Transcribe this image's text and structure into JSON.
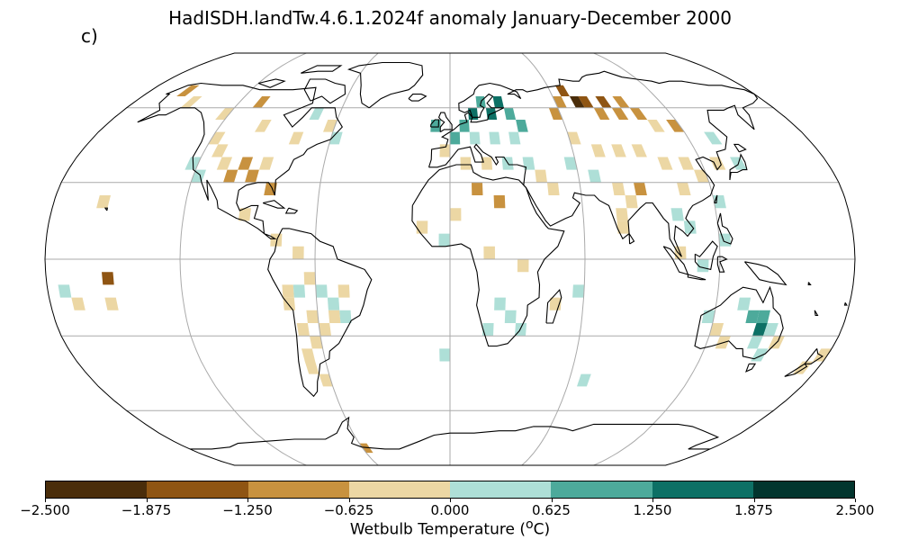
{
  "title": "HadISDH.landTw.4.6.1.2024f anomaly January-December 2000",
  "panel_label": "c)",
  "colorbar": {
    "label_text": "Wetbulb Temperature (",
    "label_sup": "o",
    "label_end": "C)",
    "ticks": [
      "−2.500",
      "−1.875",
      "−1.250",
      "−0.625",
      "0.000",
      "0.625",
      "1.250",
      "1.875",
      "2.500"
    ],
    "colors": [
      "#4a2d0a",
      "#8f5513",
      "#c8923f",
      "#ecd7a4",
      "#aedfd7",
      "#4daa9b",
      "#0d7065",
      "#02352e"
    ]
  },
  "map_data": {
    "projection": "Robinson",
    "gridlines": true,
    "variable": "wetbulb temperature anomaly",
    "period": "January-December 2000",
    "grid_cell_deg": 5,
    "anomaly_cells": [
      {
        "lon": -117.5,
        "lat": 47.5,
        "bin": 3
      },
      {
        "lon": -112.5,
        "lat": 42.5,
        "bin": 3
      },
      {
        "lon": -107.5,
        "lat": 37.5,
        "bin": 3
      },
      {
        "lon": -102.5,
        "lat": 32.5,
        "bin": 2
      },
      {
        "lon": -97.5,
        "lat": 37.5,
        "bin": 2
      },
      {
        "lon": -92.5,
        "lat": 32.5,
        "bin": 2
      },
      {
        "lon": -87.5,
        "lat": 37.5,
        "bin": 3
      },
      {
        "lon": -82.5,
        "lat": 27.5,
        "bin": 2
      },
      {
        "lon": -122.5,
        "lat": 37.5,
        "bin": 4
      },
      {
        "lon": -117.5,
        "lat": 32.5,
        "bin": 4
      },
      {
        "lon": -122.5,
        "lat": 57.5,
        "bin": 3
      },
      {
        "lon": -107.5,
        "lat": 62.5,
        "bin": 2
      },
      {
        "lon": -97.5,
        "lat": 52.5,
        "bin": 3
      },
      {
        "lon": -77.5,
        "lat": 47.5,
        "bin": 3
      },
      {
        "lon": -62.5,
        "lat": 52.5,
        "bin": 3
      },
      {
        "lon": -157.5,
        "lat": 67.5,
        "bin": 2
      },
      {
        "lon": -147.5,
        "lat": 62.5,
        "bin": 3
      },
      {
        "lon": -72.5,
        "lat": 57.5,
        "bin": 4
      },
      {
        "lon": -57.5,
        "lat": 47.5,
        "bin": 4
      },
      {
        "lon": -92.5,
        "lat": 17.5,
        "bin": 3
      },
      {
        "lon": -77.5,
        "lat": 7.5,
        "bin": 3
      },
      {
        "lon": -67.5,
        "lat": 2.5,
        "bin": 3
      },
      {
        "lon": -62.5,
        "lat": -7.5,
        "bin": 3
      },
      {
        "lon": -57.5,
        "lat": -12.5,
        "bin": 4
      },
      {
        "lon": -52.5,
        "lat": -17.5,
        "bin": 4
      },
      {
        "lon": -47.5,
        "lat": -12.5,
        "bin": 3
      },
      {
        "lon": -62.5,
        "lat": -22.5,
        "bin": 3
      },
      {
        "lon": -67.5,
        "lat": -27.5,
        "bin": 3
      },
      {
        "lon": -62.5,
        "lat": -32.5,
        "bin": 3
      },
      {
        "lon": -67.5,
        "lat": -37.5,
        "bin": 3
      },
      {
        "lon": -67.5,
        "lat": -42.5,
        "bin": 3
      },
      {
        "lon": -57.5,
        "lat": -27.5,
        "bin": 3
      },
      {
        "lon": -52.5,
        "lat": -22.5,
        "bin": 3
      },
      {
        "lon": -47.5,
        "lat": -22.5,
        "bin": 4
      },
      {
        "lon": -72.5,
        "lat": -12.5,
        "bin": 3
      },
      {
        "lon": -72.5,
        "lat": -17.5,
        "bin": 3
      },
      {
        "lon": -67.5,
        "lat": -12.5,
        "bin": 4
      },
      {
        "lon": -62.5,
        "lat": -47.5,
        "bin": 3
      },
      {
        "lon": -7.5,
        "lat": 52.5,
        "bin": 5
      },
      {
        "lon": 2.5,
        "lat": 47.5,
        "bin": 5
      },
      {
        "lon": 7.5,
        "lat": 52.5,
        "bin": 5
      },
      {
        "lon": 12.5,
        "lat": 57.5,
        "bin": 6
      },
      {
        "lon": 17.5,
        "lat": 62.5,
        "bin": 5
      },
      {
        "lon": 22.5,
        "lat": 57.5,
        "bin": 6
      },
      {
        "lon": 27.5,
        "lat": 62.5,
        "bin": 6
      },
      {
        "lon": 32.5,
        "lat": 57.5,
        "bin": 5
      },
      {
        "lon": 37.5,
        "lat": 52.5,
        "bin": 5
      },
      {
        "lon": 12.5,
        "lat": 47.5,
        "bin": 4
      },
      {
        "lon": 22.5,
        "lat": 47.5,
        "bin": 4
      },
      {
        "lon": 32.5,
        "lat": 47.5,
        "bin": 4
      },
      {
        "lon": -2.5,
        "lat": 42.5,
        "bin": 3
      },
      {
        "lon": 7.5,
        "lat": 37.5,
        "bin": 3
      },
      {
        "lon": 17.5,
        "lat": 37.5,
        "bin": 3
      },
      {
        "lon": 27.5,
        "lat": 37.5,
        "bin": 4
      },
      {
        "lon": 37.5,
        "lat": 37.5,
        "bin": 4
      },
      {
        "lon": 42.5,
        "lat": 32.5,
        "bin": 3
      },
      {
        "lon": 47.5,
        "lat": 27.5,
        "bin": 3
      },
      {
        "lon": 12.5,
        "lat": 27.5,
        "bin": 2
      },
      {
        "lon": 22.5,
        "lat": 22.5,
        "bin": 2
      },
      {
        "lon": 2.5,
        "lat": 17.5,
        "bin": 3
      },
      {
        "lon": -12.5,
        "lat": 12.5,
        "bin": 3
      },
      {
        "lon": -2.5,
        "lat": 7.5,
        "bin": 4
      },
      {
        "lon": 17.5,
        "lat": 2.5,
        "bin": 3
      },
      {
        "lon": 32.5,
        "lat": -2.5,
        "bin": 3
      },
      {
        "lon": 22.5,
        "lat": -17.5,
        "bin": 4
      },
      {
        "lon": 27.5,
        "lat": -22.5,
        "bin": 4
      },
      {
        "lon": 32.5,
        "lat": -27.5,
        "bin": 4
      },
      {
        "lon": 17.5,
        "lat": -27.5,
        "bin": 4
      },
      {
        "lon": 47.5,
        "lat": -17.5,
        "bin": 3
      },
      {
        "lon": 57.5,
        "lat": -12.5,
        "bin": 4
      },
      {
        "lon": 57.5,
        "lat": 57.5,
        "bin": 2
      },
      {
        "lon": 62.5,
        "lat": 62.5,
        "bin": 2
      },
      {
        "lon": 67.5,
        "lat": 67.5,
        "bin": 1
      },
      {
        "lon": 72.5,
        "lat": 62.5,
        "bin": 0
      },
      {
        "lon": 77.5,
        "lat": 62.5,
        "bin": 1
      },
      {
        "lon": 82.5,
        "lat": 57.5,
        "bin": 2
      },
      {
        "lon": 87.5,
        "lat": 62.5,
        "bin": 1
      },
      {
        "lon": 92.5,
        "lat": 57.5,
        "bin": 2
      },
      {
        "lon": 97.5,
        "lat": 62.5,
        "bin": 2
      },
      {
        "lon": 102.5,
        "lat": 57.5,
        "bin": 2
      },
      {
        "lon": 107.5,
        "lat": 52.5,
        "bin": 3
      },
      {
        "lon": 117.5,
        "lat": 52.5,
        "bin": 2
      },
      {
        "lon": 62.5,
        "lat": 47.5,
        "bin": 3
      },
      {
        "lon": 72.5,
        "lat": 42.5,
        "bin": 3
      },
      {
        "lon": 82.5,
        "lat": 42.5,
        "bin": 3
      },
      {
        "lon": 92.5,
        "lat": 42.5,
        "bin": 3
      },
      {
        "lon": 102.5,
        "lat": 37.5,
        "bin": 3
      },
      {
        "lon": 112.5,
        "lat": 37.5,
        "bin": 3
      },
      {
        "lon": 117.5,
        "lat": 32.5,
        "bin": 3
      },
      {
        "lon": 107.5,
        "lat": 27.5,
        "bin": 3
      },
      {
        "lon": 77.5,
        "lat": 27.5,
        "bin": 3
      },
      {
        "lon": 82.5,
        "lat": 22.5,
        "bin": 3
      },
      {
        "lon": 77.5,
        "lat": 17.5,
        "bin": 3
      },
      {
        "lon": 77.5,
        "lat": 12.5,
        "bin": 3
      },
      {
        "lon": 87.5,
        "lat": 27.5,
        "bin": 2
      },
      {
        "lon": 67.5,
        "lat": 32.5,
        "bin": 4
      },
      {
        "lon": 57.5,
        "lat": 37.5,
        "bin": 4
      },
      {
        "lon": 102.5,
        "lat": 17.5,
        "bin": 4
      },
      {
        "lon": 107.5,
        "lat": 12.5,
        "bin": 4
      },
      {
        "lon": 122.5,
        "lat": 22.5,
        "bin": 4
      },
      {
        "lon": 127.5,
        "lat": 37.5,
        "bin": 3
      },
      {
        "lon": 137.5,
        "lat": 37.5,
        "bin": 4
      },
      {
        "lon": 132.5,
        "lat": 47.5,
        "bin": 4
      },
      {
        "lon": 102.5,
        "lat": 2.5,
        "bin": 3
      },
      {
        "lon": 112.5,
        "lat": -2.5,
        "bin": 4
      },
      {
        "lon": 122.5,
        "lat": 7.5,
        "bin": 4
      },
      {
        "lon": 117.5,
        "lat": -22.5,
        "bin": 4
      },
      {
        "lon": 122.5,
        "lat": -27.5,
        "bin": 3
      },
      {
        "lon": 132.5,
        "lat": -17.5,
        "bin": 4
      },
      {
        "lon": 137.5,
        "lat": -22.5,
        "bin": 5
      },
      {
        "lon": 142.5,
        "lat": -22.5,
        "bin": 5
      },
      {
        "lon": 142.5,
        "lat": -27.5,
        "bin": 6
      },
      {
        "lon": 147.5,
        "lat": -27.5,
        "bin": 4
      },
      {
        "lon": 142.5,
        "lat": -32.5,
        "bin": 4
      },
      {
        "lon": 147.5,
        "lat": -37.5,
        "bin": 4
      },
      {
        "lon": 127.5,
        "lat": -32.5,
        "bin": 3
      },
      {
        "lon": 152.5,
        "lat": -32.5,
        "bin": 3
      },
      {
        "lon": 172.5,
        "lat": -42.5,
        "bin": 3
      },
      {
        "lon": 177.5,
        "lat": -37.5,
        "bin": 3
      },
      {
        "lon": -157.5,
        "lat": 22.5,
        "bin": 3
      },
      {
        "lon": -152.5,
        "lat": -7.5,
        "bin": 1
      },
      {
        "lon": -172.5,
        "lat": -12.5,
        "bin": 4
      },
      {
        "lon": -167.5,
        "lat": -17.5,
        "bin": 3
      },
      {
        "lon": -152.5,
        "lat": -17.5,
        "bin": 3
      },
      {
        "lon": -2.5,
        "lat": -37.5,
        "bin": 4
      },
      {
        "lon": 67.5,
        "lat": -47.5,
        "bin": 4
      },
      {
        "lon": -57.5,
        "lat": -77.5,
        "bin": 2
      }
    ]
  }
}
